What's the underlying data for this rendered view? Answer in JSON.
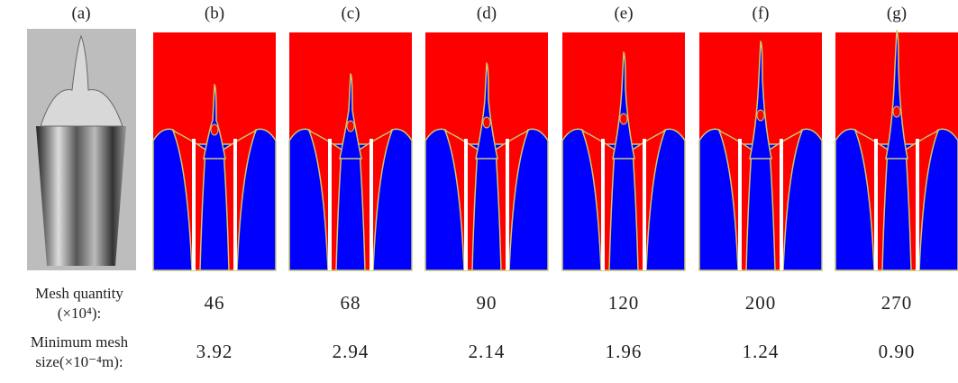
{
  "panels": [
    {
      "label": "(a)"
    },
    {
      "label": "(b)"
    },
    {
      "label": "(c)"
    },
    {
      "label": "(d)"
    },
    {
      "label": "(e)"
    },
    {
      "label": "(f)"
    },
    {
      "label": "(g)"
    }
  ],
  "table": {
    "rows": [
      {
        "label_lines": [
          "Mesh quantity",
          "(×10⁴):"
        ],
        "cells": [
          "46",
          "68",
          "90",
          "120",
          "200",
          "270"
        ]
      },
      {
        "label_lines": [
          "Minimum mesh",
          "size(×10⁻⁴m):"
        ],
        "cells": [
          "3.92",
          "2.94",
          "2.14",
          "1.96",
          "1.24",
          "0.90"
        ]
      }
    ]
  }
}
